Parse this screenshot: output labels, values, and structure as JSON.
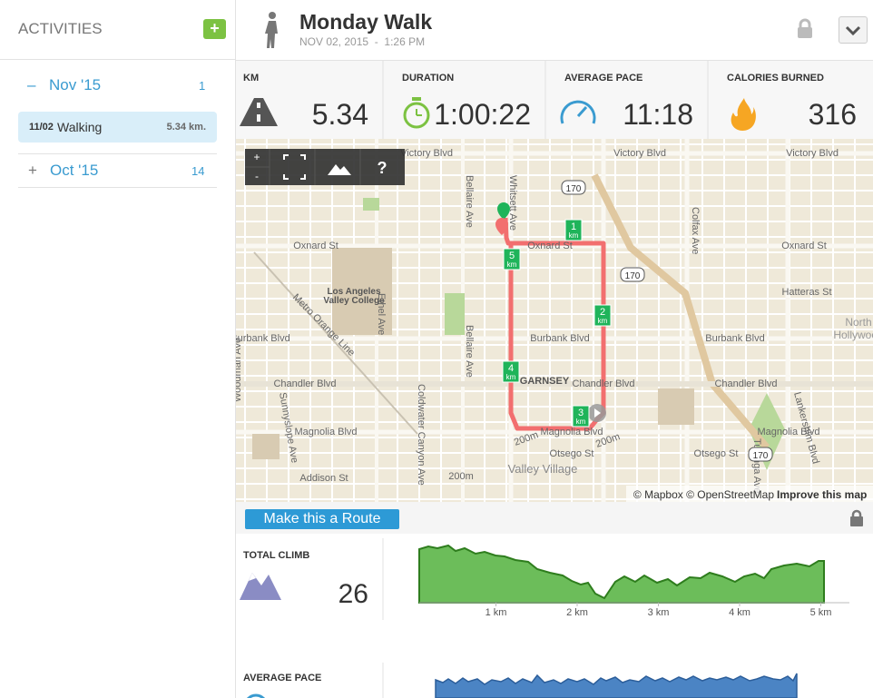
{
  "sidebar": {
    "title": "ACTIVITIES",
    "add": "+",
    "groups": [
      {
        "toggle": "–",
        "label": "Nov '15",
        "count": 1
      },
      {
        "toggle": "+",
        "label": "Oct '15",
        "count": 14
      }
    ],
    "activity": {
      "date": "11/02",
      "name": "Walking",
      "distance": "5.34 km."
    }
  },
  "header": {
    "title": "Monday Walk",
    "date": "NOV 02, 2015",
    "separator": "-",
    "time": "1:26 PM"
  },
  "stats": [
    {
      "label": "KM",
      "value": 5.34
    },
    {
      "label": "DURATION",
      "value": "1:00:22"
    },
    {
      "label": "AVERAGE PACE",
      "value": "11:18"
    },
    {
      "label": "CALORIES BURNED",
      "value": 316
    }
  ],
  "map": {
    "controls": [
      "+",
      "-",
      "?"
    ],
    "labels": [
      "Victory Blvd",
      "Victory Blvd",
      "Victory Blvd",
      "Oxnard St",
      "Oxnard St",
      "Oxnard St",
      "Hatteras St",
      "Burbank Blvd",
      "Burbank Blvd",
      "Burbank Blvd",
      "Chandler Blvd",
      "Chandler Blvd",
      "Chandler Blvd",
      "Magnolia Blvd",
      "Magnolia Blvd",
      "Magnolia Blvd",
      "Otsego St",
      "Otsego St",
      "Addison St",
      "GARNSEY",
      "Valley Village",
      "North",
      "Hollywood",
      "Los Angeles",
      "Valley College",
      "Whitsett Ave",
      "Bellaire Ave",
      "Bellaire Ave",
      "Ethel Ave",
      "Coldwater Canyon Ave",
      "Colfax Ave",
      "Woodman Ave",
      "Lankershim Blvd",
      "Tujunga Ave",
      "Sunnyslope Ave",
      "Metro Orange Line",
      "200m",
      "200m",
      "200m"
    ],
    "km_markers": [
      {
        "num": "1",
        "unit": "km"
      },
      {
        "num": "2",
        "unit": "km"
      },
      {
        "num": "3",
        "unit": "km"
      },
      {
        "num": "4",
        "unit": "km"
      },
      {
        "num": "5",
        "unit": "km"
      }
    ],
    "shields": [
      "170",
      "170",
      "170"
    ],
    "attribution": "© Mapbox © OpenStreetMap",
    "improve": "Improve this map"
  },
  "route_button": "Make this a Route",
  "climb": {
    "label": "TOTAL CLIMB",
    "value": 26,
    "xticks": [
      {
        "value": 1,
        "label": "1 km"
      },
      {
        "value": 2,
        "label": "2 km"
      },
      {
        "value": 3,
        "label": "3 km"
      },
      {
        "value": 4,
        "label": "4 km"
      },
      {
        "value": 5,
        "label": "5 km"
      }
    ]
  },
  "pace": {
    "label": "AVERAGE PACE"
  }
}
